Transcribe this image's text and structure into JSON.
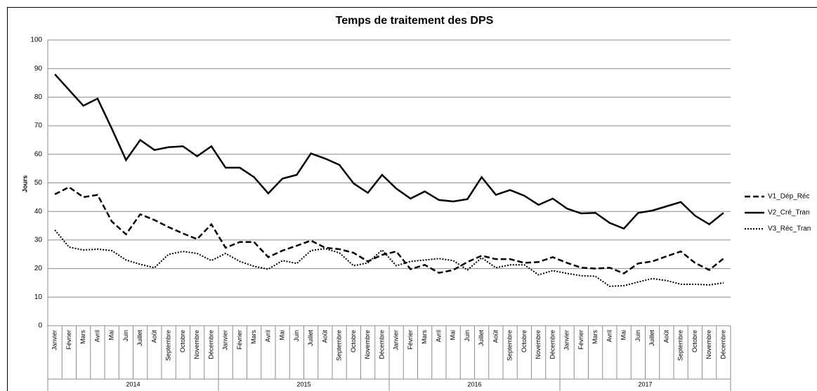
{
  "chart_data": {
    "type": "line",
    "title": "Temps de traitement des DPS",
    "y_label": "Jours",
    "categories": [
      "Janvier",
      "Février",
      "Mars",
      "Avril",
      "Mai",
      "Juin",
      "Juillet",
      "Août",
      "Septembre",
      "Octobre",
      "Novembre",
      "Décembre",
      "Janvier",
      "Février",
      "Mars",
      "Avril",
      "Mai",
      "Juin",
      "Juillet",
      "Août",
      "Septembre",
      "Octobre",
      "Novembre",
      "Décembre",
      "Janvier",
      "Février",
      "Mars",
      "Avril",
      "Mai",
      "Juin",
      "Juillet",
      "Août",
      "Septembre",
      "Octobre",
      "Novembre",
      "Décembre",
      "Janvier",
      "Février",
      "Mars",
      "Avril",
      "Mai",
      "Juin",
      "Juillet",
      "Août",
      "Septembre",
      "Octobre",
      "Novembre",
      "Décembre"
    ],
    "years": [
      "2014",
      "2015",
      "2016",
      "2017"
    ],
    "series": [
      {
        "name": "V1_Dép_Réc",
        "color": "#000000",
        "dash": "dashed",
        "values": [
          46,
          48.5,
          45,
          45.8,
          36.5,
          32,
          39,
          37,
          34.5,
          32.3,
          30.3,
          35.5,
          27.3,
          29.3,
          29.3,
          24,
          26.3,
          28,
          29.8,
          27.3,
          26.8,
          25.5,
          22.5,
          24.8,
          26,
          19.8,
          21.3,
          18.5,
          19.5,
          22.3,
          24.5,
          23.3,
          23.3,
          22,
          22.3,
          24,
          22,
          20.3,
          20,
          20.3,
          18.3,
          21.8,
          22.5,
          24.3,
          26,
          22,
          19.5,
          23.5
        ]
      },
      {
        "name": "V2_Cré_Tran",
        "color": "#000000",
        "dash": "solid",
        "values": [
          88,
          82.5,
          77,
          79.5,
          69,
          58,
          65,
          61.5,
          62.5,
          62.8,
          59.3,
          62.8,
          55.3,
          55.3,
          52,
          46.3,
          51.5,
          52.8,
          60.3,
          58.5,
          56.3,
          49.8,
          46.5,
          52.8,
          48,
          44.5,
          47,
          44,
          43.5,
          44.3,
          52,
          45.8,
          47.5,
          45.5,
          42.3,
          44.5,
          41,
          39.3,
          39.5,
          36,
          34,
          39.5,
          40.3,
          41.8,
          43.3,
          38.5,
          35.5,
          39.5
        ]
      },
      {
        "name": "V3_Réc_Tran",
        "color": "#000000",
        "dash": "dotted",
        "values": [
          33.5,
          27.5,
          26.5,
          26.8,
          26.3,
          23,
          21.5,
          20.3,
          25,
          26,
          25.3,
          22.8,
          25.3,
          22.5,
          20.8,
          19.8,
          22.8,
          21.8,
          26.3,
          27,
          25.5,
          21,
          22,
          26.5,
          21,
          22.5,
          23,
          23.5,
          22.8,
          19.5,
          23.8,
          20.3,
          21.3,
          21.3,
          17.8,
          19.3,
          18.3,
          17.5,
          17.3,
          13.8,
          14,
          15.3,
          16.5,
          15.8,
          14.5,
          14.5,
          14.3,
          15
        ]
      }
    ],
    "ylim": [
      0,
      100
    ],
    "yticks": [
      0,
      10,
      20,
      30,
      40,
      50,
      60,
      70,
      80,
      90,
      100
    ],
    "grid": true,
    "legend": "right"
  }
}
